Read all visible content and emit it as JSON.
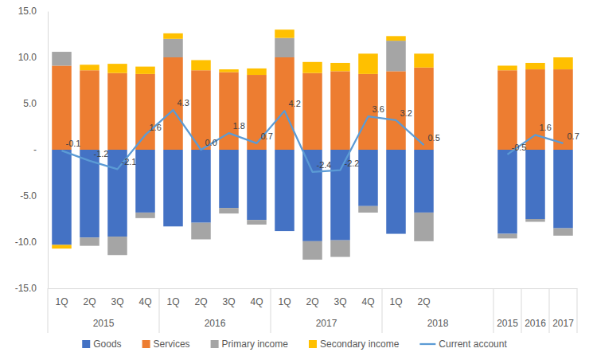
{
  "chart_data": {
    "type": "bar",
    "stacked": true,
    "legend": "bottom",
    "categories": [
      "1Q",
      "2Q",
      "3Q",
      "4Q",
      "1Q",
      "2Q",
      "3Q",
      "4Q",
      "1Q",
      "2Q",
      "3Q",
      "4Q",
      "1Q",
      "2Q",
      null,
      null,
      null,
      null,
      null
    ],
    "category_groups": [
      "2015",
      "2015",
      "2015",
      "2015",
      "2016",
      "2016",
      "2016",
      "2016",
      "2017",
      "2017",
      "2017",
      "2017",
      "2018",
      "2018",
      "2018",
      "2018",
      "2015",
      "2016",
      "2017"
    ],
    "ylim": [
      -15,
      15
    ],
    "yticks": [
      {
        "value": -15,
        "label": "-15.0"
      },
      {
        "value": -10,
        "label": "-10.0"
      },
      {
        "value": -5,
        "label": "-5.0"
      },
      {
        "value": 0,
        "label": "-"
      },
      {
        "value": 5,
        "label": "5.0"
      },
      {
        "value": 10,
        "label": "10.0"
      },
      {
        "value": 15,
        "label": "15.0"
      }
    ],
    "series": [
      {
        "name": "Goods",
        "type": "bar",
        "color": "#4472c4",
        "values": [
          -10.3,
          -9.5,
          -9.4,
          -6.8,
          -8.3,
          -7.9,
          -6.3,
          -7.6,
          -8.8,
          -9.9,
          -9.8,
          -6.1,
          -9.1,
          -6.8,
          null,
          null,
          -9.1,
          -7.5,
          -8.5
        ]
      },
      {
        "name": "Services",
        "type": "bar",
        "color": "#ed7d31",
        "values": [
          9.1,
          8.6,
          8.3,
          8.2,
          10.0,
          8.6,
          8.4,
          8.1,
          10.0,
          8.3,
          8.5,
          8.2,
          8.5,
          8.9,
          null,
          null,
          8.6,
          8.7,
          8.7
        ]
      },
      {
        "name": "Primary income",
        "type": "bar",
        "color": "#a5a5a5",
        "values": [
          1.5,
          -0.9,
          -2.0,
          -0.6,
          2.0,
          -1.8,
          -0.6,
          -0.5,
          2.1,
          -2.0,
          -1.8,
          -0.7,
          3.3,
          -3.1,
          null,
          null,
          -0.5,
          -0.3,
          -0.8
        ]
      },
      {
        "name": "Secondary income",
        "type": "bar",
        "color": "#ffc000",
        "values": [
          -0.4,
          0.6,
          1.0,
          0.8,
          0.6,
          1.1,
          0.3,
          0.7,
          0.9,
          1.2,
          0.9,
          2.2,
          0.5,
          1.5,
          null,
          null,
          0.5,
          0.7,
          1.3
        ]
      },
      {
        "name": "Current account",
        "type": "line",
        "color": "#5b9bd5",
        "data_labels": true,
        "values": [
          -0.1,
          -1.2,
          -2.1,
          1.6,
          4.3,
          0.0,
          1.8,
          0.7,
          4.2,
          -2.4,
          -2.2,
          3.6,
          3.2,
          0.5,
          null,
          null,
          -0.5,
          1.6,
          0.7
        ],
        "value_labels": [
          "-0.1",
          "-1.2",
          "-2.1",
          "1.6",
          "4.3",
          "0.0",
          "1.8",
          "0.7",
          "4.2",
          "-2.4",
          "-2.2",
          "3.6",
          "3.2",
          "0.5",
          null,
          null,
          "-0.5",
          "1.6",
          "0.7"
        ]
      }
    ]
  }
}
